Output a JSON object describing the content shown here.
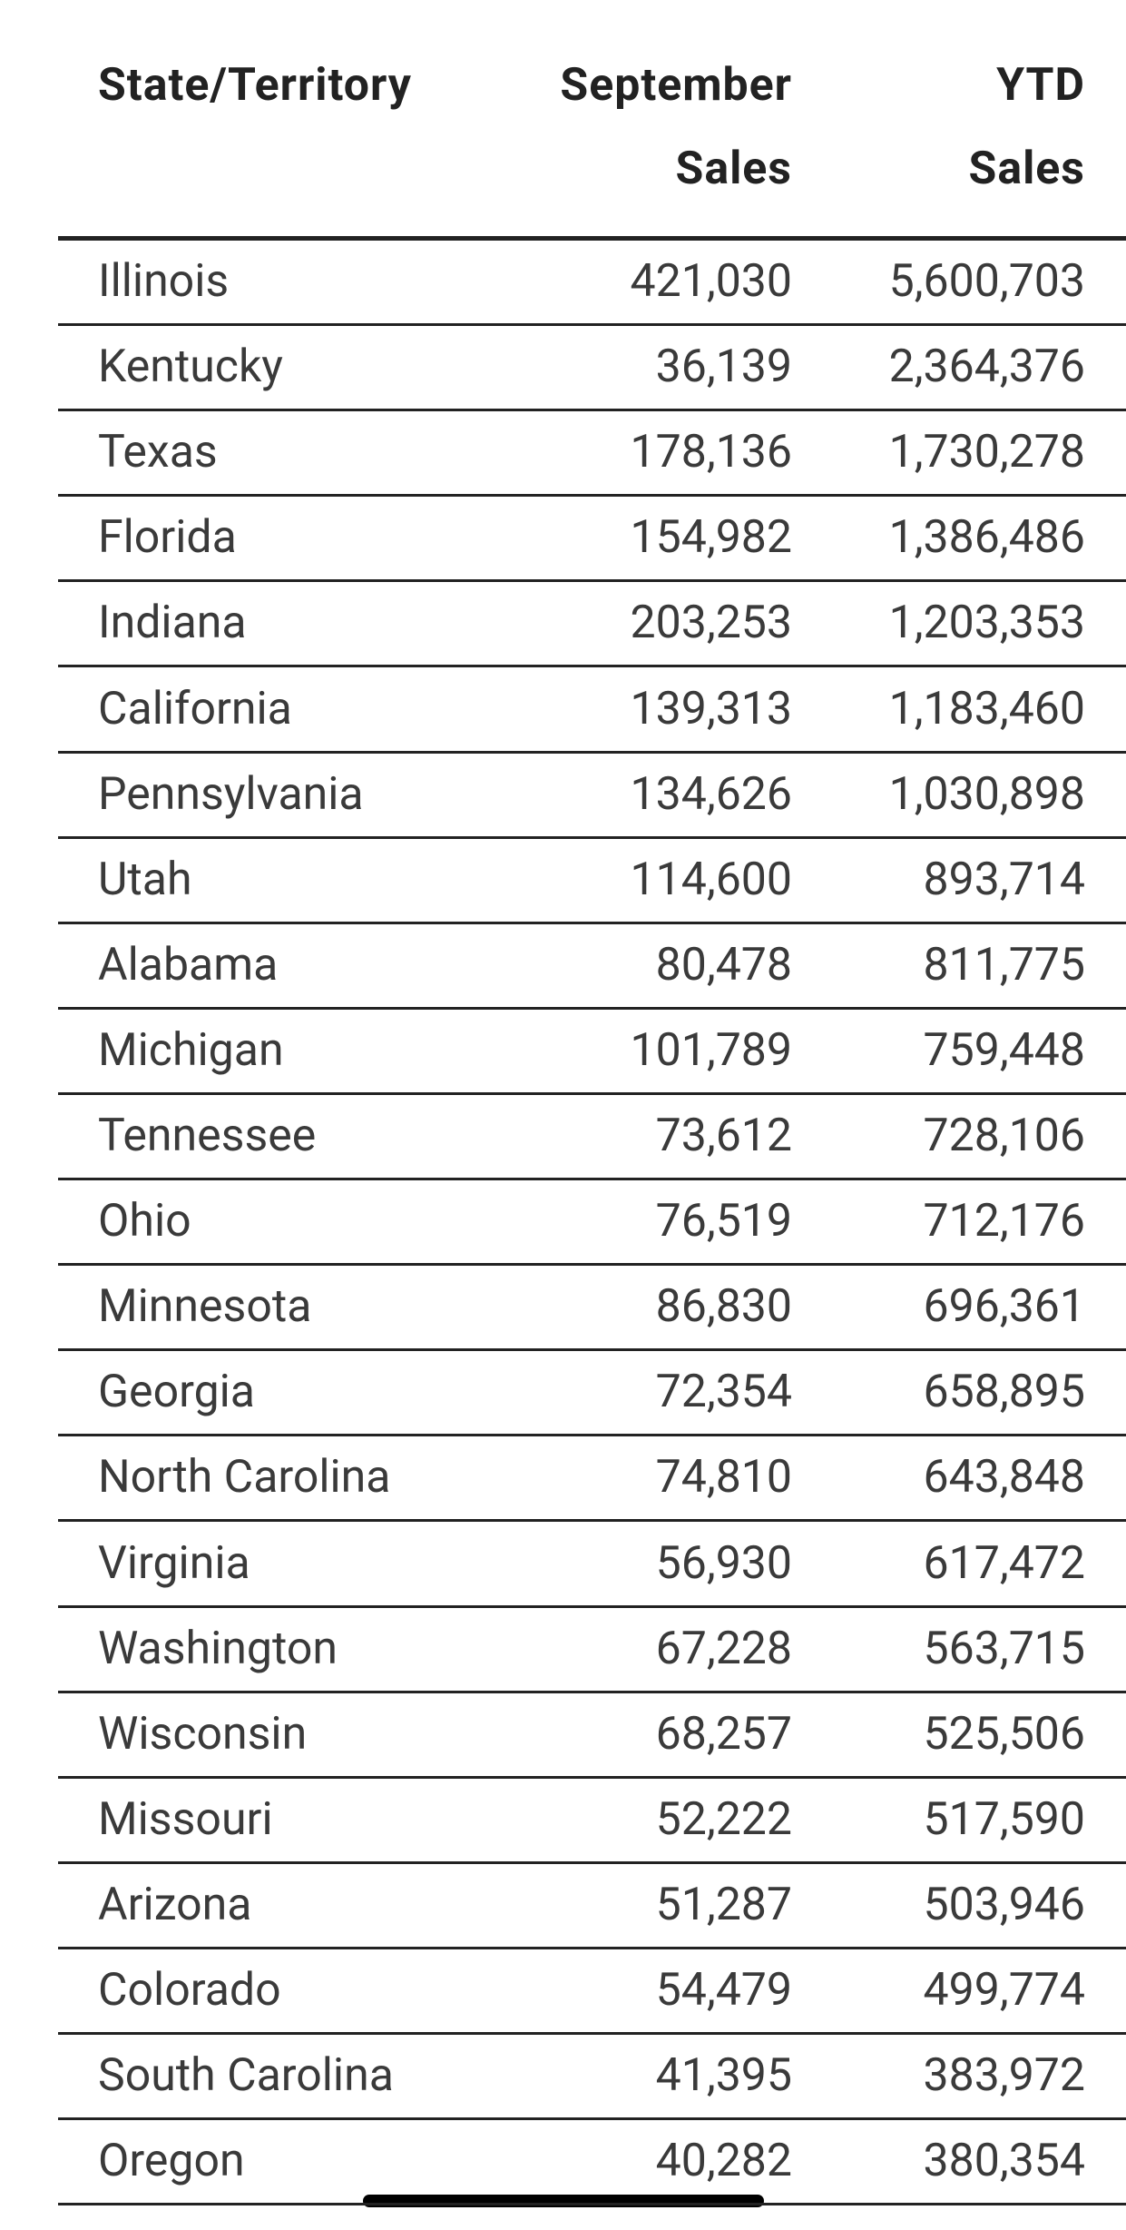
{
  "table": {
    "header": [
      [
        "State/Territory"
      ],
      [
        "September",
        "Sales"
      ],
      [
        "YTD",
        "Sales"
      ]
    ],
    "rows": [
      [
        "Illinois",
        "421,030",
        "5,600,703"
      ],
      [
        "Kentucky",
        "36,139",
        "2,364,376"
      ],
      [
        "Texas",
        "178,136",
        "1,730,278"
      ],
      [
        "Florida",
        "154,982",
        "1,386,486"
      ],
      [
        "Indiana",
        "203,253",
        "1,203,353"
      ],
      [
        "California",
        "139,313",
        "1,183,460"
      ],
      [
        "Pennsylvania",
        "134,626",
        "1,030,898"
      ],
      [
        "Utah",
        "114,600",
        "893,714"
      ],
      [
        "Alabama",
        "80,478",
        "811,775"
      ],
      [
        "Michigan",
        "101,789",
        "759,448"
      ],
      [
        "Tennessee",
        "73,612",
        "728,106"
      ],
      [
        "Ohio",
        "76,519",
        "712,176"
      ],
      [
        "Minnesota",
        "86,830",
        "696,361"
      ],
      [
        "Georgia",
        "72,354",
        "658,895"
      ],
      [
        "North Carolina",
        "74,810",
        "643,848"
      ],
      [
        "Virginia",
        "56,930",
        "617,472"
      ],
      [
        "Washington",
        "67,228",
        "563,715"
      ],
      [
        "Wisconsin",
        "68,257",
        "525,506"
      ],
      [
        "Missouri",
        "52,222",
        "517,590"
      ],
      [
        "Arizona",
        "51,287",
        "503,946"
      ],
      [
        "Colorado",
        "54,479",
        "499,774"
      ],
      [
        "South Carolina",
        "41,395",
        "383,972"
      ],
      [
        "Oregon",
        "40,282",
        "380,354"
      ]
    ]
  }
}
